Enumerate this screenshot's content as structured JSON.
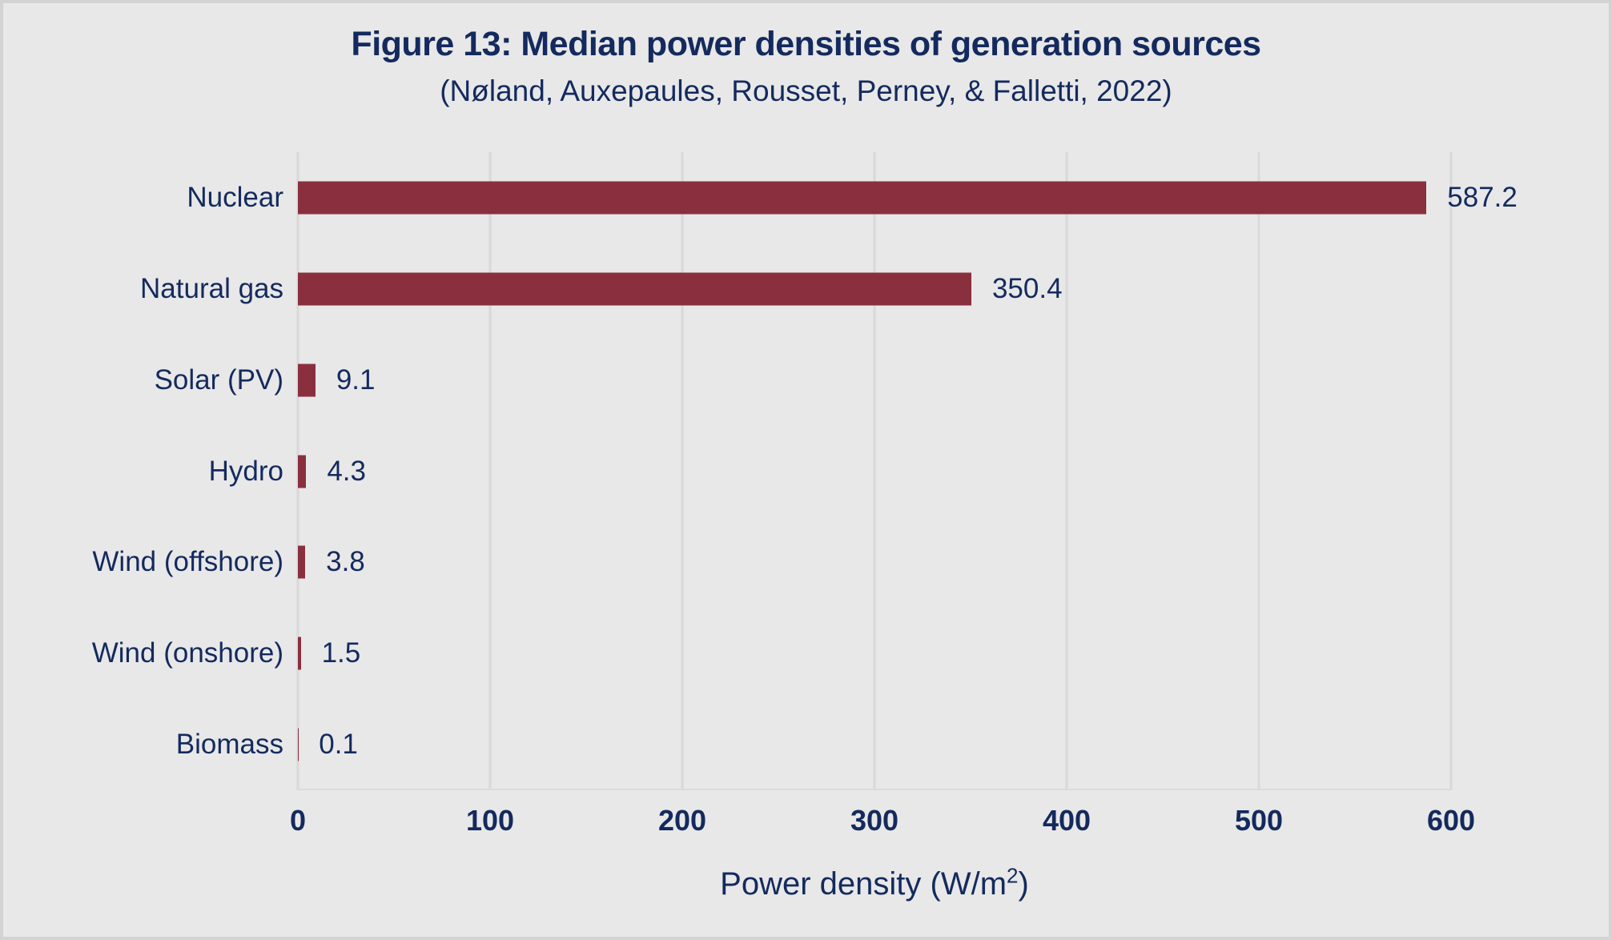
{
  "header": {
    "title": "Figure 13: Median power densities of generation sources",
    "subtitle": "(Nøland, Auxepaules, Rousset, Perney, & Falletti, 2022)"
  },
  "colors": {
    "bar": "#8a2f3e",
    "text": "#142a5e",
    "background": "#e8e8e8",
    "gridline": "#d9d9d9",
    "frame_border": "#d3d3d3"
  },
  "chart_data": {
    "type": "bar",
    "orientation": "horizontal",
    "title": "Figure 13: Median power densities of generation sources",
    "subtitle": "(Nøland, Auxepaules, Rousset, Perney, & Falletti, 2022)",
    "categories": [
      "Nuclear",
      "Natural gas",
      "Solar (PV)",
      "Hydro",
      "Wind (offshore)",
      "Wind (onshore)",
      "Biomass"
    ],
    "values": [
      587.2,
      350.4,
      9.1,
      4.3,
      3.8,
      1.5,
      0.1
    ],
    "value_labels": [
      "587.2",
      "350.4",
      "9.1",
      "4.3",
      "3.8",
      "1.5",
      "0.1"
    ],
    "xticks": [
      0,
      100,
      200,
      300,
      400,
      500,
      600
    ],
    "xtick_labels": [
      "0",
      "100",
      "200",
      "300",
      "400",
      "500",
      "600"
    ],
    "xlim": [
      0,
      600
    ],
    "xlabel_prefix": "Power density (W/m",
    "xlabel_sup": "2",
    "xlabel_suffix": ")",
    "grid": "vertical",
    "legend": "none",
    "bar_color": "#8a2f3e"
  }
}
